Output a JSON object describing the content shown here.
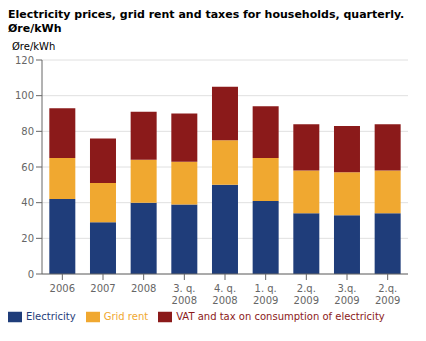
{
  "chart_data": {
    "type": "bar",
    "title": "Electricity prices, grid rent and taxes for households, quarterly.",
    "subtitle": "Øre/kWh",
    "ylabel": "Øre/kWh",
    "categories": [
      "2006",
      "2007",
      "2008",
      "3. q.\n2008",
      "4. q.\n2008",
      "1. q.\n2009",
      "2.q.\n2009",
      "3.q.\n2009",
      "2.q.\n2009"
    ],
    "series": [
      {
        "name": "Electricity",
        "color": "#1f3d7a",
        "values": [
          42,
          29,
          40,
          39,
          50,
          41,
          34,
          33,
          34
        ]
      },
      {
        "name": "Grid rent",
        "color": "#f0a830",
        "values": [
          23,
          22,
          24,
          24,
          25,
          24,
          24,
          24,
          24
        ]
      },
      {
        "name": "VAT and tax on consumption of electricity",
        "color": "#8b1a1a",
        "values": [
          28,
          25,
          27,
          27,
          30,
          29,
          26,
          26,
          26
        ]
      }
    ],
    "stacked": true,
    "ylim": [
      0,
      120
    ],
    "yticks": [
      0,
      20,
      40,
      60,
      80,
      100,
      120
    ],
    "grid": true
  }
}
